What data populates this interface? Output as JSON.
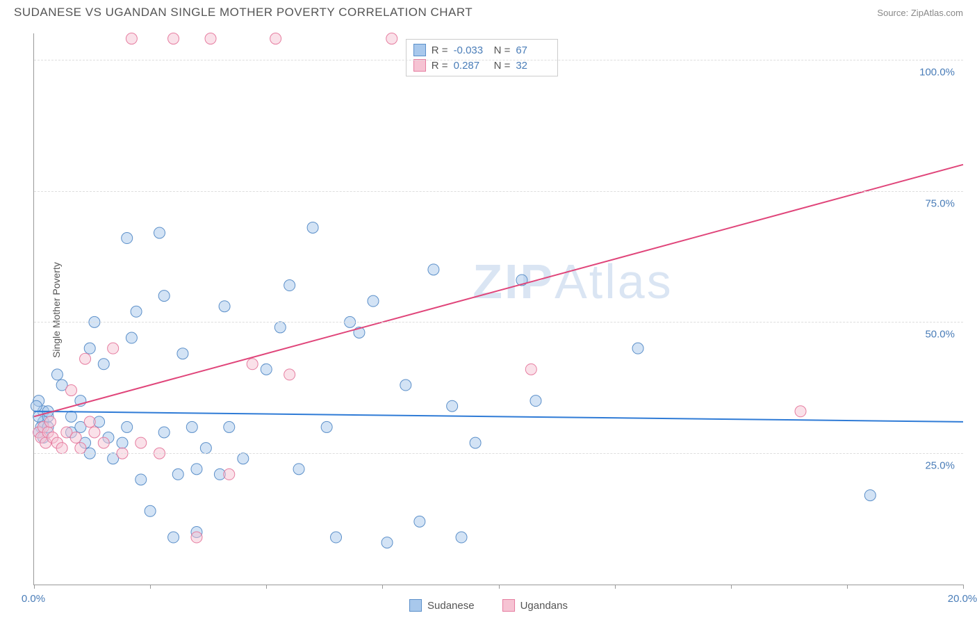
{
  "header": {
    "title": "SUDANESE VS UGANDAN SINGLE MOTHER POVERTY CORRELATION CHART",
    "source_label": "Source:",
    "source_name": "ZipAtlas.com"
  },
  "chart": {
    "type": "scatter",
    "ylabel": "Single Mother Poverty",
    "watermark": "ZIPAtlas",
    "background_color": "#ffffff",
    "grid_color": "#dddddd",
    "axis_color": "#999999",
    "tick_label_color": "#4a7db8",
    "xlim": [
      0,
      20
    ],
    "ylim": [
      0,
      105
    ],
    "xticks": [
      0,
      2.5,
      5,
      7.5,
      10,
      12.5,
      15,
      17.5,
      20
    ],
    "xtick_labels": {
      "0": "0.0%",
      "20": "20.0%"
    },
    "yticks": [
      25,
      50,
      75,
      100
    ],
    "ytick_labels": {
      "25": "25.0%",
      "50": "50.0%",
      "75": "75.0%",
      "100": "100.0%"
    },
    "series": [
      {
        "name": "Sudanese",
        "color_fill": "#a8c8ec",
        "color_stroke": "#5b8fc9",
        "fill_opacity": 0.5,
        "marker": "circle",
        "marker_r": 8,
        "trend_line": {
          "color": "#2f7bd6",
          "width": 2,
          "y_at_xmin": 33,
          "y_at_xmax": 31
        },
        "stats": {
          "R": "-0.033",
          "N": "67"
        },
        "points": [
          [
            0.1,
            35
          ],
          [
            0.2,
            31
          ],
          [
            0.2,
            33
          ],
          [
            0.15,
            30
          ],
          [
            0.1,
            29
          ],
          [
            0.2,
            28
          ],
          [
            0.3,
            30
          ],
          [
            0.1,
            32
          ],
          [
            0.3,
            32
          ],
          [
            0.05,
            34
          ],
          [
            0.5,
            40
          ],
          [
            0.6,
            38
          ],
          [
            0.8,
            32
          ],
          [
            0.8,
            29
          ],
          [
            1.0,
            30
          ],
          [
            1.0,
            35
          ],
          [
            1.1,
            27
          ],
          [
            1.2,
            45
          ],
          [
            1.2,
            25
          ],
          [
            1.3,
            50
          ],
          [
            1.4,
            31
          ],
          [
            1.5,
            42
          ],
          [
            1.6,
            28
          ],
          [
            1.7,
            24
          ],
          [
            1.9,
            27
          ],
          [
            2.0,
            66
          ],
          [
            2.0,
            30
          ],
          [
            2.1,
            47
          ],
          [
            2.2,
            52
          ],
          [
            2.3,
            20
          ],
          [
            2.5,
            14
          ],
          [
            2.7,
            67
          ],
          [
            2.8,
            29
          ],
          [
            2.8,
            55
          ],
          [
            3.0,
            9
          ],
          [
            3.1,
            21
          ],
          [
            3.2,
            44
          ],
          [
            3.4,
            30
          ],
          [
            3.5,
            10
          ],
          [
            3.5,
            22
          ],
          [
            3.7,
            26
          ],
          [
            4.0,
            21
          ],
          [
            4.1,
            53
          ],
          [
            4.2,
            30
          ],
          [
            4.5,
            24
          ],
          [
            5.0,
            41
          ],
          [
            5.3,
            49
          ],
          [
            5.5,
            57
          ],
          [
            5.7,
            22
          ],
          [
            6.0,
            68
          ],
          [
            6.3,
            30
          ],
          [
            6.5,
            9
          ],
          [
            6.8,
            50
          ],
          [
            7.0,
            48
          ],
          [
            7.3,
            54
          ],
          [
            7.6,
            8
          ],
          [
            8.0,
            38
          ],
          [
            8.3,
            12
          ],
          [
            8.6,
            60
          ],
          [
            9.0,
            34
          ],
          [
            9.2,
            9
          ],
          [
            9.5,
            27
          ],
          [
            10.5,
            58
          ],
          [
            10.8,
            35
          ],
          [
            13.0,
            45
          ],
          [
            18.0,
            17
          ],
          [
            0.3,
            33
          ]
        ]
      },
      {
        "name": "Ugandans",
        "color_fill": "#f6c3d3",
        "color_stroke": "#e67da0",
        "fill_opacity": 0.5,
        "marker": "circle",
        "marker_r": 8,
        "trend_line": {
          "color": "#e0457a",
          "width": 2,
          "y_at_xmin": 32,
          "y_at_xmax": 80
        },
        "stats": {
          "R": "0.287",
          "N": "32"
        },
        "points": [
          [
            0.1,
            29
          ],
          [
            0.15,
            28
          ],
          [
            0.2,
            30
          ],
          [
            0.25,
            27
          ],
          [
            0.3,
            29
          ],
          [
            0.35,
            31
          ],
          [
            0.4,
            28
          ],
          [
            0.5,
            27
          ],
          [
            0.6,
            26
          ],
          [
            0.7,
            29
          ],
          [
            0.8,
            37
          ],
          [
            0.9,
            28
          ],
          [
            1.0,
            26
          ],
          [
            1.1,
            43
          ],
          [
            1.2,
            31
          ],
          [
            1.3,
            29
          ],
          [
            1.5,
            27
          ],
          [
            1.7,
            45
          ],
          [
            1.9,
            25
          ],
          [
            2.1,
            104
          ],
          [
            2.3,
            27
          ],
          [
            2.7,
            25
          ],
          [
            3.0,
            104
          ],
          [
            3.5,
            9
          ],
          [
            3.8,
            104
          ],
          [
            4.2,
            21
          ],
          [
            4.7,
            42
          ],
          [
            5.2,
            104
          ],
          [
            5.5,
            40
          ],
          [
            7.7,
            104
          ],
          [
            10.7,
            41
          ],
          [
            16.5,
            33
          ]
        ]
      }
    ],
    "legend": {
      "position": "bottom-center",
      "items": [
        {
          "label": "Sudanese",
          "fill": "#a8c8ec",
          "stroke": "#5b8fc9"
        },
        {
          "label": "Ugandans",
          "fill": "#f6c3d3",
          "stroke": "#e67da0"
        }
      ]
    },
    "stats_box": {
      "rows": [
        {
          "fill": "#a8c8ec",
          "stroke": "#5b8fc9",
          "R": "-0.033",
          "N": "67"
        },
        {
          "fill": "#f6c3d3",
          "stroke": "#e67da0",
          "R": "0.287",
          "N": "32"
        }
      ]
    }
  }
}
